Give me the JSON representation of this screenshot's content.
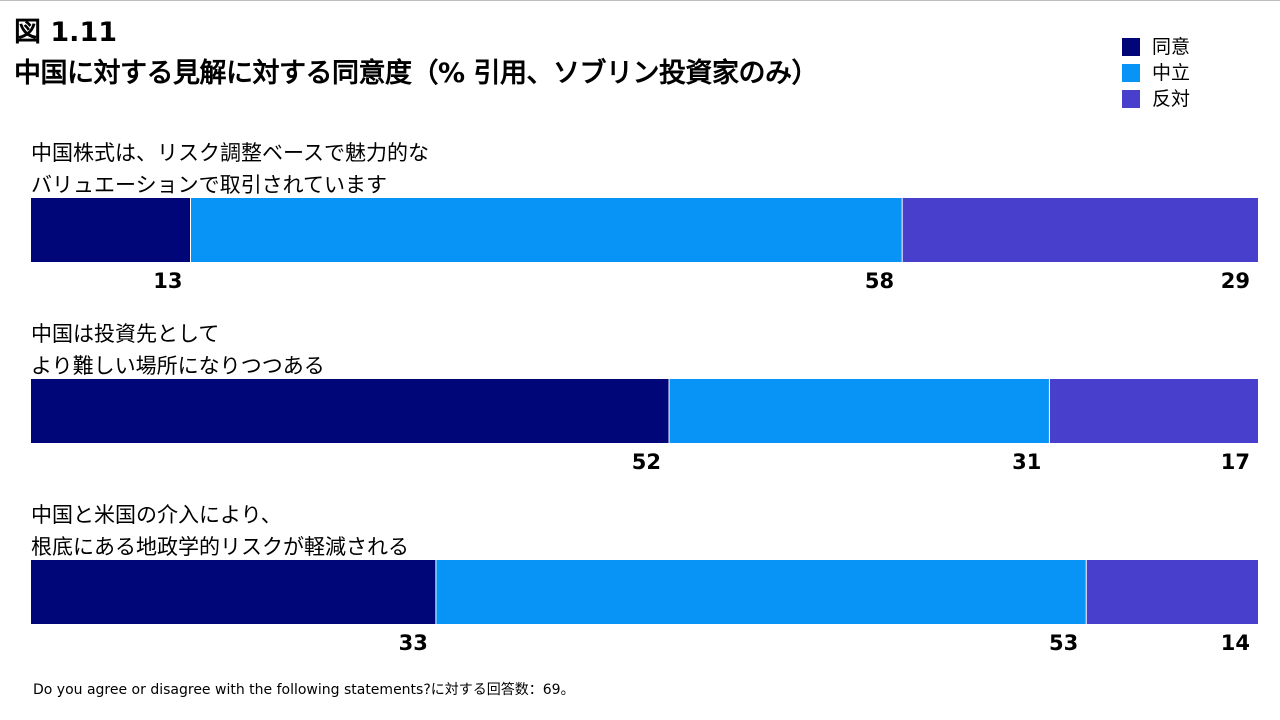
{
  "figure_label": "図 1.11",
  "title": "中国に対する見解に対する同意度（% 引用、ソブリン投資家のみ）",
  "footnote": "Do you agree or disagree with the following statements?に対する回答数：69。",
  "colors": {
    "agree": "#000578",
    "neutral": "#0894f7",
    "disagree": "#4840cc"
  },
  "chart_data": {
    "type": "bar",
    "orientation": "horizontal",
    "stacked": true,
    "normalized_100_percent": true,
    "legend_position": "top-right",
    "grid": false,
    "categories": [
      [
        "中国株式は、リスク調整ベースで魅力的な",
        "バリュエーションで取引されています"
      ],
      [
        "中国は投資先として",
        "より難しい場所になりつつある"
      ],
      [
        "中国と米国の介入により、",
        "根底にある地政学的リスクが軽減される"
      ]
    ],
    "series": [
      {
        "name": "同意",
        "color": "#000578",
        "values": [
          13,
          52,
          33
        ]
      },
      {
        "name": "中立",
        "color": "#0894f7",
        "values": [
          58,
          31,
          53
        ]
      },
      {
        "name": "反対",
        "color": "#4840cc",
        "values": [
          29,
          17,
          14
        ]
      }
    ]
  }
}
